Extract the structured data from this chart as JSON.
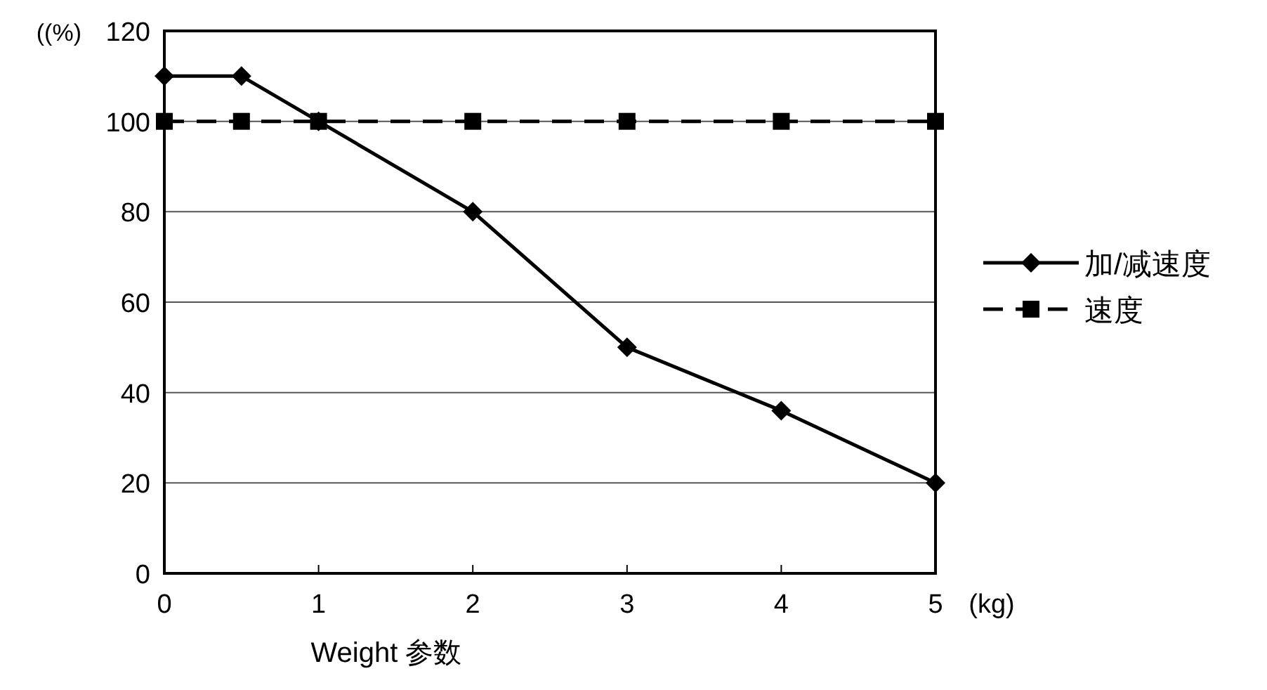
{
  "chart_data": {
    "type": "line",
    "xlabel": "Weight 参数",
    "ylabel": "((%)",
    "annotations": [
      "(kg)"
    ],
    "x": [
      0,
      0.5,
      1,
      2,
      3,
      4,
      5
    ],
    "series": [
      {
        "name": "加/减速度",
        "color": "#000000",
        "values": [
          110,
          110,
          100,
          80,
          50,
          36,
          20
        ],
        "marker": "diamond",
        "line_style": "solid"
      },
      {
        "name": "速度",
        "color": "#000000",
        "values": [
          100,
          100,
          100,
          100,
          100,
          100,
          100
        ],
        "marker": "square",
        "line_style": "dashed"
      }
    ],
    "xlim": [
      0,
      5
    ],
    "ylim": [
      0,
      120
    ],
    "xticks": [
      0,
      1,
      2,
      3,
      4,
      5
    ],
    "yticks": [
      0,
      20,
      40,
      60,
      80,
      100,
      120
    ],
    "grid": "y",
    "legend": "right"
  }
}
